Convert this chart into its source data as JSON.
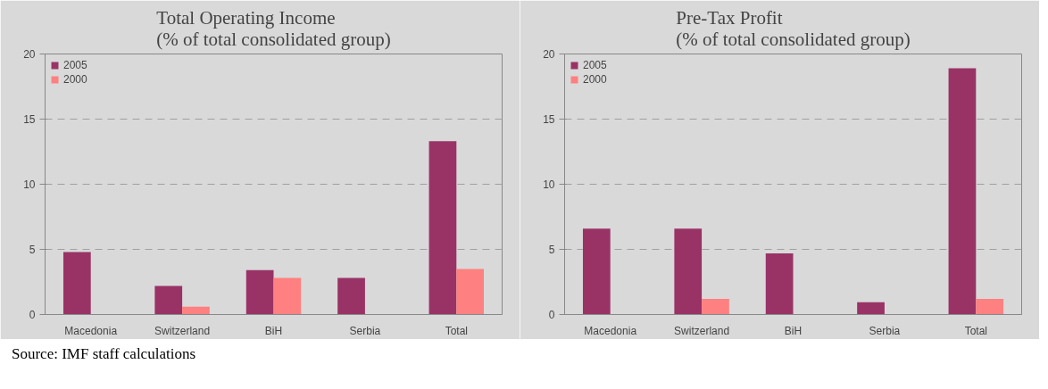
{
  "chart_data": [
    {
      "type": "bar",
      "title": "Total Operating Income\n(% of total consolidated group)",
      "categories": [
        "Macedonia",
        "Switzerland",
        "BiH",
        "Serbia",
        "Total"
      ],
      "series": [
        {
          "name": "2005",
          "color": "#993366",
          "values": [
            4.8,
            2.2,
            3.4,
            2.8,
            13.3
          ]
        },
        {
          "name": "2000",
          "color": "#ff8080",
          "values": [
            null,
            0.6,
            2.8,
            null,
            3.5
          ]
        }
      ],
      "ylim": [
        0,
        20
      ],
      "yticks": [
        0,
        5,
        10,
        15,
        20
      ],
      "grid": "y",
      "legend": "top left",
      "annotations": [
        "Source: IMF staff calculations"
      ]
    },
    {
      "type": "bar",
      "title": "Pre-Tax Profit\n(% of total consolidated group)",
      "categories": [
        "Macedonia",
        "Switzerland",
        "BiH",
        "Serbia",
        "Total"
      ],
      "series": [
        {
          "name": "2005",
          "color": "#993366",
          "values": [
            6.6,
            6.6,
            4.7,
            0.95,
            18.9
          ]
        },
        {
          "name": "2000",
          "color": "#ff8080",
          "values": [
            null,
            1.2,
            null,
            null,
            1.2
          ]
        }
      ],
      "ylim": [
        0,
        20
      ],
      "yticks": [
        0,
        5,
        10,
        15,
        20
      ],
      "grid": "y",
      "legend": "top left"
    }
  ]
}
